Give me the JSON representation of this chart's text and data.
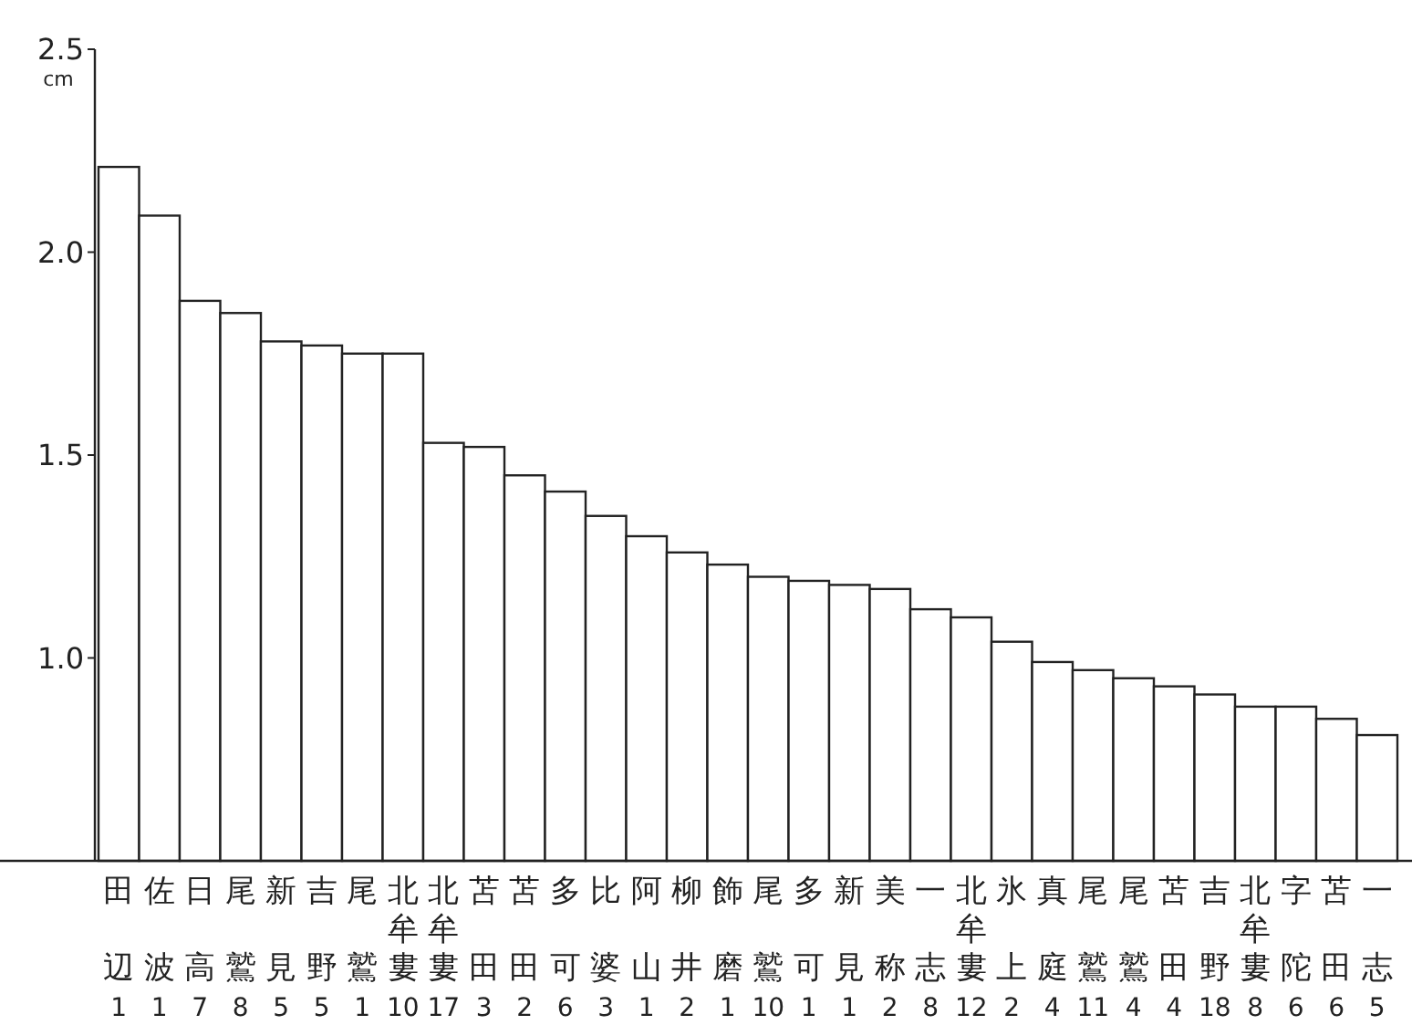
{
  "chart_data": {
    "type": "bar",
    "ylabel": "cm",
    "categories": [
      "田辺1",
      "佐波1",
      "日高7",
      "尾鷲8",
      "新見5",
      "吉野5",
      "尾鷲1",
      "北牟婁10",
      "北牟婁17",
      "苫田3",
      "苫田2",
      "多可6",
      "比婆3",
      "阿山1",
      "柳井2",
      "飾磨1",
      "尾鷲10",
      "多可1",
      "新見1",
      "美称2",
      "一志8",
      "北牟婁12",
      "氷上2",
      "真庭4",
      "尾鷲11",
      "尾鷲4",
      "苫田4",
      "吉野18",
      "北牟婁8",
      "字陀6",
      "苫田6",
      "一志5"
    ],
    "values": [
      2.21,
      2.09,
      1.88,
      1.85,
      1.78,
      1.77,
      1.75,
      1.75,
      1.53,
      1.52,
      1.45,
      1.41,
      1.35,
      1.3,
      1.26,
      1.23,
      1.2,
      1.19,
      1.18,
      1.17,
      1.12,
      1.1,
      1.04,
      0.99,
      0.97,
      0.95,
      0.93,
      0.91,
      0.88,
      0.88,
      0.85,
      0.81
    ],
    "color": "#ffffff",
    "ylim": [
      0.5,
      2.5
    ],
    "yticks": [
      {
        "value": 1,
        "label": "1.0"
      },
      {
        "value": 1.5,
        "label": "1.5"
      },
      {
        "value": 2,
        "label": "2.0"
      },
      {
        "value": 2.5,
        "label": "2.5"
      }
    ]
  }
}
